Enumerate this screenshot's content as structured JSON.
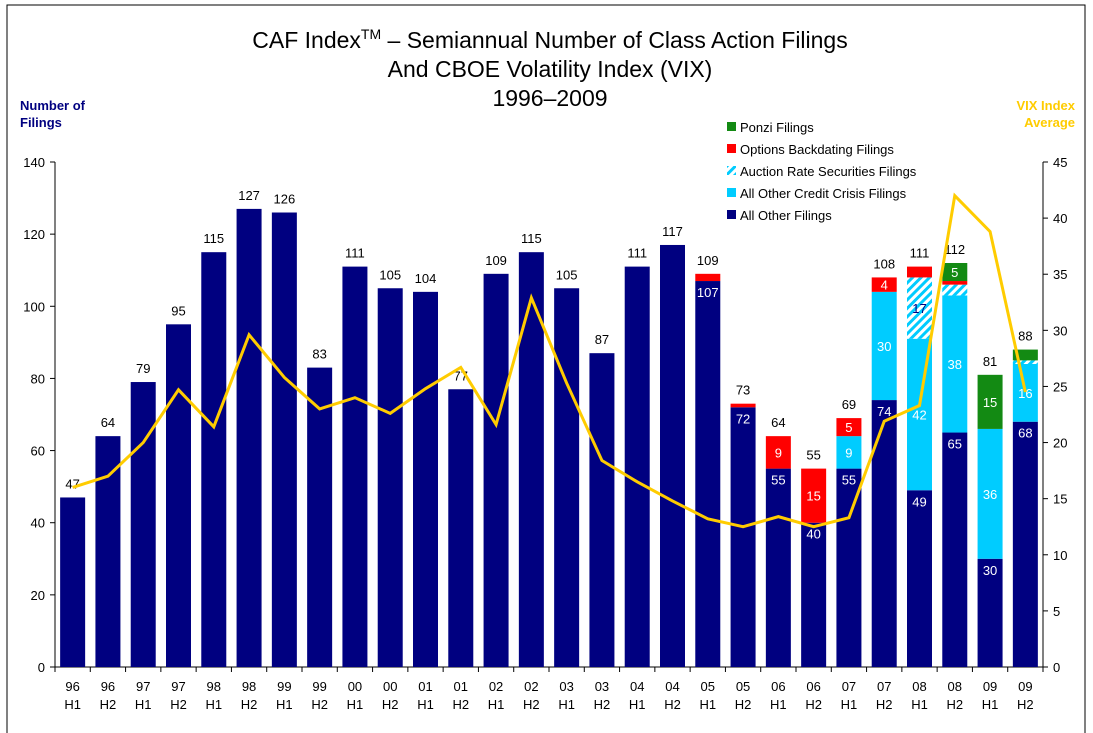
{
  "chart_data": {
    "type": "bar",
    "stacked": true,
    "title_prefix": "CAF Index",
    "title_superscript": "TM",
    "title_rest": " – Semiannual Number of Class Action Filings",
    "title_line2": "And CBOE Volatility Index (VIX)",
    "title_line3": "1996–2009",
    "y_label": [
      "Number of",
      "Filings"
    ],
    "y2_label": [
      "VIX Index",
      "Average"
    ],
    "categories": [
      "96 H1",
      "96 H2",
      "97 H1",
      "97 H2",
      "98 H1",
      "98 H2",
      "99 H1",
      "99 H2",
      "00 H1",
      "00 H2",
      "01 H1",
      "01 H2",
      "02 H1",
      "02 H2",
      "03 H1",
      "03 H2",
      "04 H1",
      "04 H2",
      "05 H1",
      "05 H2",
      "06 H1",
      "06 H2",
      "07 H1",
      "07 H2",
      "08 H1",
      "08 H2",
      "09 H1",
      "09 H2"
    ],
    "totals": [
      47,
      64,
      79,
      95,
      115,
      127,
      126,
      83,
      111,
      105,
      104,
      77,
      109,
      115,
      105,
      87,
      111,
      117,
      109,
      73,
      64,
      55,
      69,
      108,
      111,
      112,
      81,
      88
    ],
    "series": [
      {
        "name": "All Other Filings",
        "color": "#000080",
        "label_color": "#ffffff",
        "values": [
          47,
          64,
          79,
          95,
          115,
          127,
          126,
          83,
          111,
          105,
          104,
          77,
          109,
          115,
          105,
          87,
          111,
          117,
          107,
          72,
          55,
          40,
          55,
          74,
          49,
          65,
          30,
          68
        ],
        "value_labels": [
          null,
          null,
          null,
          null,
          null,
          null,
          null,
          null,
          null,
          null,
          null,
          null,
          null,
          null,
          null,
          null,
          null,
          null,
          107,
          72,
          55,
          40,
          55,
          74,
          49,
          65,
          30,
          68
        ]
      },
      {
        "name": "All Other Credit Crisis Filings",
        "color": "#00ccff",
        "label_color": "#ffffff",
        "values": [
          0,
          0,
          0,
          0,
          0,
          0,
          0,
          0,
          0,
          0,
          0,
          0,
          0,
          0,
          0,
          0,
          0,
          0,
          0,
          0,
          0,
          0,
          9,
          30,
          42,
          38,
          36,
          16
        ],
        "value_labels": [
          null,
          null,
          null,
          null,
          null,
          null,
          null,
          null,
          null,
          null,
          null,
          null,
          null,
          null,
          null,
          null,
          null,
          null,
          null,
          null,
          null,
          null,
          9,
          30,
          42,
          38,
          36,
          16
        ]
      },
      {
        "name": "Auction Rate Securities Filings",
        "color": "#00ccff",
        "hatch": true,
        "label_color": "#000080",
        "values": [
          0,
          0,
          0,
          0,
          0,
          0,
          0,
          0,
          0,
          0,
          0,
          0,
          0,
          0,
          0,
          0,
          0,
          0,
          0,
          0,
          0,
          0,
          0,
          0,
          17,
          3,
          0,
          1
        ],
        "value_labels": [
          null,
          null,
          null,
          null,
          null,
          null,
          null,
          null,
          null,
          null,
          null,
          null,
          null,
          null,
          null,
          null,
          null,
          null,
          null,
          null,
          null,
          null,
          null,
          null,
          17,
          null,
          null,
          null
        ]
      },
      {
        "name": "Options Backdating Filings",
        "color": "#ff0000",
        "label_color": "#ffffff",
        "values": [
          0,
          0,
          0,
          0,
          0,
          0,
          0,
          0,
          0,
          0,
          0,
          0,
          0,
          0,
          0,
          0,
          0,
          0,
          2,
          1,
          9,
          15,
          5,
          4,
          3,
          1,
          0,
          0
        ],
        "value_labels": [
          null,
          null,
          null,
          null,
          null,
          null,
          null,
          null,
          null,
          null,
          null,
          null,
          null,
          null,
          null,
          null,
          null,
          null,
          null,
          null,
          9,
          15,
          5,
          4,
          null,
          null,
          null,
          null
        ]
      },
      {
        "name": "Ponzi Filings",
        "color": "#138a13",
        "label_color": "#ffffff",
        "values": [
          0,
          0,
          0,
          0,
          0,
          0,
          0,
          0,
          0,
          0,
          0,
          0,
          0,
          0,
          0,
          0,
          0,
          0,
          0,
          0,
          0,
          0,
          0,
          0,
          0,
          5,
          15,
          3
        ],
        "value_labels": [
          null,
          null,
          null,
          null,
          null,
          null,
          null,
          null,
          null,
          null,
          null,
          null,
          null,
          null,
          null,
          null,
          null,
          null,
          null,
          null,
          null,
          null,
          null,
          null,
          null,
          5,
          15,
          null
        ]
      },
      {
        "type": "line",
        "axis": "y2",
        "color": "#ffcc00",
        "in_legend": false,
        "values": [
          16,
          17,
          20,
          24.7,
          21.4,
          29.6,
          25.8,
          23,
          24,
          22.6,
          24.8,
          26.7,
          21.6,
          32.9,
          25.3,
          18.4,
          16.5,
          14.8,
          13.2,
          12.5,
          13.4,
          12.5,
          13.3,
          21.9,
          23.3,
          42,
          38.8,
          24.5
        ]
      }
    ],
    "ylim": [
      0,
      140
    ],
    "yticks": [
      0,
      20,
      40,
      60,
      80,
      100,
      120,
      140
    ],
    "y2lim": [
      0,
      45
    ],
    "y2ticks": [
      0,
      5,
      10,
      15,
      20,
      25,
      30,
      35,
      40,
      45
    ],
    "y_label_color": "#000080",
    "y2_label_color": "#ffcc00"
  }
}
